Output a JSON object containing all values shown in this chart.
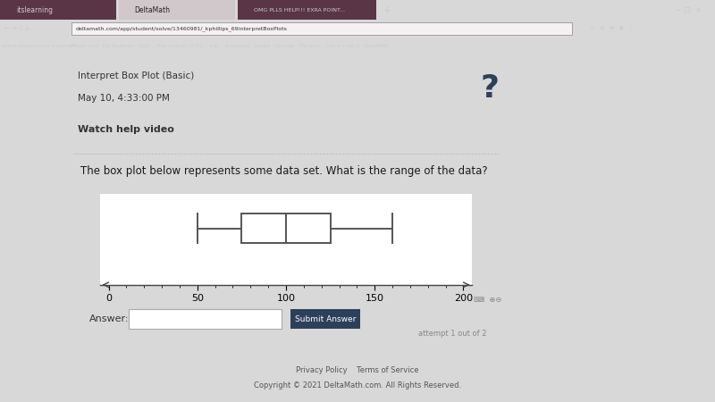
{
  "whisker_low": 50,
  "q1": 75,
  "median": 100,
  "q3": 125,
  "whisker_high": 160,
  "axis_min": 0,
  "axis_max": 200,
  "axis_ticks": [
    0,
    50,
    100,
    150,
    200
  ],
  "box_color": "#ffffff",
  "box_edge_color": "#555555",
  "line_color": "#555555",
  "browser_bg": "#3a1f2e",
  "page_bg": "#d8d8d8",
  "white_panel": "#ffffff",
  "question_bg": "#dde8f0",
  "question_text": "The box plot below represents some data set. What is the range of the data?",
  "header_line1": "Interpret Box Plot (Basic)",
  "header_line2": "May 10, 4:33:00 PM",
  "watch_help": "Watch help video",
  "answer_label": "Answer:",
  "submit_label": "Submit Answer",
  "attempt_text": "attempt 1 out of 2",
  "footer_text1": "Privacy Policy    Terms of Service",
  "footer_text2": "Copyright © 2021 DeltaMath.com. All Rights Reserved."
}
